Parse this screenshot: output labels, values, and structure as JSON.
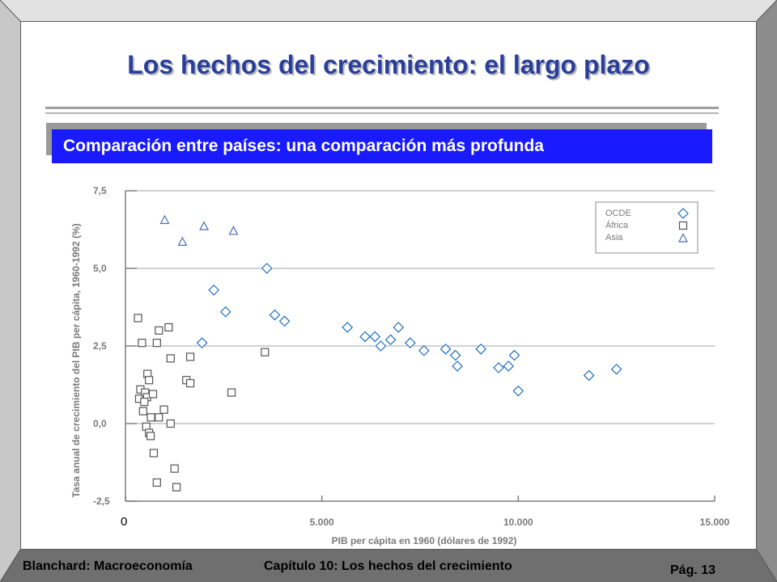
{
  "slide": {
    "title": "Los hechos del crecimiento: el largo plazo",
    "subtitle": "Comparación entre países: una comparación más profunda",
    "footer_left": "Blanchard: Macroeconomía",
    "footer_center": "Capítulo 10: Los hechos del crecimiento",
    "footer_right": "Pág. 13"
  },
  "colors": {
    "title": "#2a3f9a",
    "subtitle_bg": "#1a1aff",
    "oecd": "#1f6fc0",
    "africa": "#555555",
    "asia": "#4a6fb5",
    "axis": "#7f7f7f"
  },
  "chart_data": {
    "type": "scatter",
    "xlabel": "PIB per cápita en 1960 (dólares de 1992)",
    "ylabel": "Tasa anual de crecimiento del PIB per cápita, 1960-1992 (%)",
    "xlim": [
      0,
      15000
    ],
    "ylim": [
      -2.5,
      7.5
    ],
    "x_ticks": [
      0,
      5000,
      10000,
      15000
    ],
    "x_tick_labels": [
      "0",
      "5.000",
      "10.000",
      "15.000"
    ],
    "y_ticks": [
      -2.5,
      0,
      2.5,
      5,
      7.5
    ],
    "y_tick_labels": [
      "-2,5",
      "0,0",
      "2,5",
      "5,0",
      "7,5"
    ],
    "grid": "horizontal",
    "legend_position": "top-right",
    "series": [
      {
        "name": "OCDE",
        "marker": "diamond",
        "points": [
          [
            1950,
            2.6
          ],
          [
            2250,
            4.3
          ],
          [
            2550,
            3.6
          ],
          [
            3600,
            5.0
          ],
          [
            3800,
            3.5
          ],
          [
            4050,
            3.3
          ],
          [
            5650,
            3.1
          ],
          [
            6100,
            2.8
          ],
          [
            6350,
            2.8
          ],
          [
            6500,
            2.5
          ],
          [
            6750,
            2.7
          ],
          [
            6950,
            3.1
          ],
          [
            7250,
            2.6
          ],
          [
            7600,
            2.35
          ],
          [
            8150,
            2.4
          ],
          [
            8400,
            2.2
          ],
          [
            8450,
            1.85
          ],
          [
            9050,
            2.4
          ],
          [
            9500,
            1.8
          ],
          [
            9750,
            1.85
          ],
          [
            9900,
            2.2
          ],
          [
            10000,
            1.05
          ],
          [
            11800,
            1.55
          ],
          [
            12500,
            1.75
          ]
        ]
      },
      {
        "name": "África",
        "marker": "square",
        "points": [
          [
            320,
            3.4
          ],
          [
            420,
            2.6
          ],
          [
            380,
            1.1
          ],
          [
            350,
            0.8
          ],
          [
            560,
            1.6
          ],
          [
            600,
            1.4
          ],
          [
            500,
            1.0
          ],
          [
            550,
            0.85
          ],
          [
            480,
            0.7
          ],
          [
            450,
            0.4
          ],
          [
            700,
            0.95
          ],
          [
            650,
            0.2
          ],
          [
            530,
            -0.1
          ],
          [
            600,
            -0.3
          ],
          [
            640,
            -0.4
          ],
          [
            720,
            -0.95
          ],
          [
            800,
            -1.9
          ],
          [
            850,
            0.2
          ],
          [
            800,
            2.6
          ],
          [
            850,
            3.0
          ],
          [
            980,
            0.45
          ],
          [
            1100,
            3.1
          ],
          [
            1150,
            2.1
          ],
          [
            1150,
            0.0
          ],
          [
            1250,
            -1.45
          ],
          [
            1300,
            -2.05
          ],
          [
            1550,
            1.4
          ],
          [
            1650,
            2.15
          ],
          [
            1650,
            1.3
          ],
          [
            2700,
            1.0
          ],
          [
            3550,
            2.3
          ]
        ]
      },
      {
        "name": "Asia",
        "marker": "triangle",
        "points": [
          [
            1000,
            6.55
          ],
          [
            1450,
            5.85
          ],
          [
            2000,
            6.35
          ],
          [
            2750,
            6.2
          ]
        ]
      }
    ]
  }
}
